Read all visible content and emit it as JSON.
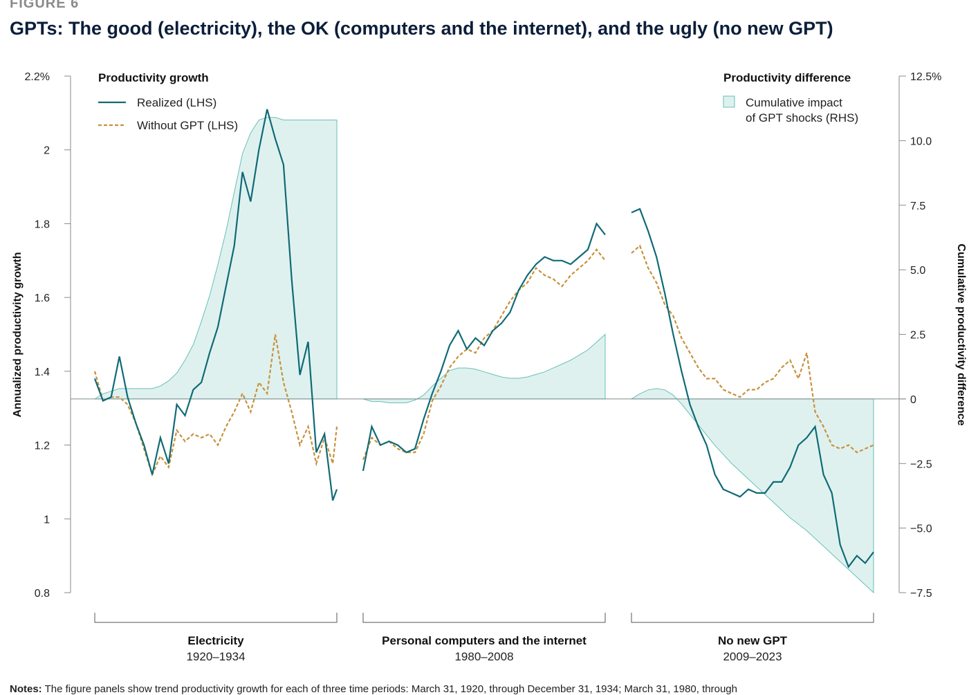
{
  "figure_label": "FIGURE 6",
  "title": "GPTs: The good (electricity), the OK (computers and the internet), and the ugly (no new GPT)",
  "notes_label": "Notes:",
  "notes_text": "The figure panels show trend productivity growth for each of three time periods: March 31, 1920, through December 31, 1934; March 31, 1980, through",
  "colors": {
    "realized": "#0f6a76",
    "without_gpt": "#c8913a",
    "impact_fill": "#dff1ef",
    "impact_stroke": "#66c0b6",
    "axis": "#8a8a8a"
  },
  "chart_data": {
    "type": "line",
    "y_left": {
      "label": "Annualized productivity growth",
      "ylim": [
        0.8,
        2.2
      ],
      "ticks": [
        "2.2%",
        "2",
        "1.8",
        "1.6",
        "1.4",
        "1.2",
        "1",
        "0.8"
      ]
    },
    "y_right": {
      "label": "Cumulative productivity difference",
      "ylim": [
        -7.5,
        12.5
      ],
      "ticks": [
        "12.5%",
        "10.0",
        "7.5",
        "5.0",
        "2.5",
        "0",
        "−2.5",
        "−5.0",
        "−7.5"
      ]
    },
    "legend_left": {
      "title": "Productivity growth",
      "realized": "Realized (LHS)",
      "without": "Without GPT (LHS)"
    },
    "legend_right": {
      "title": "Productivity difference",
      "impact_line1": "Cumulative impact",
      "impact_line2": "of GPT shocks (RHS)"
    },
    "panels": [
      {
        "name": "Electricity",
        "period": "1920–1934",
        "x": [
          1920.25,
          1920.75,
          1921.25,
          1921.75,
          1922.25,
          1922.75,
          1923.25,
          1923.75,
          1924.25,
          1924.75,
          1925.25,
          1925.75,
          1926.25,
          1926.75,
          1927.25,
          1927.75,
          1928.25,
          1928.75,
          1929.25,
          1929.75,
          1930.25,
          1930.75,
          1931.25,
          1931.75,
          1932.25,
          1932.75,
          1933.25,
          1933.75,
          1934.25,
          1934.75,
          1935.0
        ],
        "realized": [
          1.38,
          1.32,
          1.33,
          1.44,
          1.33,
          1.26,
          1.2,
          1.12,
          1.22,
          1.15,
          1.31,
          1.28,
          1.35,
          1.37,
          1.45,
          1.52,
          1.63,
          1.74,
          1.94,
          1.86,
          2.0,
          2.11,
          2.03,
          1.96,
          1.65,
          1.39,
          1.48,
          1.18,
          1.23,
          1.05,
          1.08
        ],
        "without_gpt": [
          1.4,
          1.32,
          1.33,
          1.33,
          1.31,
          1.26,
          1.19,
          1.12,
          1.17,
          1.14,
          1.24,
          1.21,
          1.23,
          1.22,
          1.23,
          1.2,
          1.25,
          1.29,
          1.34,
          1.29,
          1.37,
          1.34,
          1.5,
          1.37,
          1.29,
          1.2,
          1.25,
          1.15,
          1.22,
          1.15,
          1.25
        ],
        "impact_rhs": [
          0.0,
          0.2,
          0.3,
          0.4,
          0.4,
          0.4,
          0.4,
          0.4,
          0.5,
          0.7,
          1.0,
          1.5,
          2.1,
          3.0,
          4.0,
          5.2,
          6.5,
          8.0,
          9.5,
          10.3,
          10.8,
          10.9,
          10.9,
          10.8,
          10.8,
          10.8,
          10.8,
          10.8,
          10.8,
          10.8,
          10.8
        ]
      },
      {
        "name": "Personal computers and the internet",
        "period": "1980–2008",
        "x": [
          1980.25,
          1981.25,
          1982.25,
          1983.25,
          1984.25,
          1985.25,
          1986.25,
          1987.25,
          1988.25,
          1989.25,
          1990.25,
          1991.25,
          1992.25,
          1993.25,
          1994.25,
          1995.25,
          1996.25,
          1997.25,
          1998.25,
          1999.25,
          2000.25,
          2001.25,
          2002.25,
          2003.25,
          2004.25,
          2005.25,
          2006.25,
          2007.25,
          2008.25
        ],
        "realized": [
          1.13,
          1.25,
          1.2,
          1.21,
          1.2,
          1.18,
          1.19,
          1.27,
          1.34,
          1.4,
          1.47,
          1.51,
          1.46,
          1.49,
          1.47,
          1.51,
          1.53,
          1.56,
          1.62,
          1.66,
          1.69,
          1.71,
          1.7,
          1.7,
          1.69,
          1.71,
          1.73,
          1.8,
          1.77
        ],
        "without_gpt": [
          1.16,
          1.22,
          1.2,
          1.21,
          1.19,
          1.18,
          1.18,
          1.23,
          1.32,
          1.36,
          1.41,
          1.44,
          1.46,
          1.45,
          1.49,
          1.51,
          1.55,
          1.59,
          1.62,
          1.64,
          1.68,
          1.66,
          1.65,
          1.63,
          1.66,
          1.68,
          1.7,
          1.73,
          1.7
        ],
        "impact_rhs": [
          0.0,
          -0.1,
          -0.1,
          -0.15,
          -0.15,
          -0.15,
          -0.05,
          0.15,
          0.5,
          0.8,
          1.1,
          1.2,
          1.2,
          1.15,
          1.05,
          0.95,
          0.85,
          0.8,
          0.8,
          0.85,
          0.95,
          1.05,
          1.2,
          1.35,
          1.5,
          1.7,
          1.9,
          2.2,
          2.5
        ]
      },
      {
        "name": "No new GPT",
        "period": "2009–2023",
        "x": [
          2009.25,
          2009.75,
          2010.25,
          2010.75,
          2011.25,
          2011.75,
          2012.25,
          2012.75,
          2013.25,
          2013.75,
          2014.25,
          2014.75,
          2015.25,
          2015.75,
          2016.25,
          2016.75,
          2017.25,
          2017.75,
          2018.25,
          2018.75,
          2019.25,
          2019.75,
          2020.25,
          2020.75,
          2021.25,
          2021.75,
          2022.25,
          2022.75,
          2023.25,
          2023.75
        ],
        "realized": [
          1.83,
          1.84,
          1.78,
          1.71,
          1.61,
          1.5,
          1.4,
          1.31,
          1.25,
          1.2,
          1.12,
          1.08,
          1.07,
          1.06,
          1.08,
          1.07,
          1.07,
          1.1,
          1.1,
          1.14,
          1.2,
          1.22,
          1.25,
          1.12,
          1.07,
          0.93,
          0.87,
          0.9,
          0.88,
          0.91
        ],
        "without_gpt": [
          1.72,
          1.74,
          1.68,
          1.64,
          1.58,
          1.55,
          1.49,
          1.45,
          1.41,
          1.38,
          1.38,
          1.35,
          1.34,
          1.33,
          1.35,
          1.35,
          1.37,
          1.38,
          1.41,
          1.43,
          1.38,
          1.45,
          1.29,
          1.25,
          1.2,
          1.19,
          1.2,
          1.18,
          1.19,
          1.2
        ],
        "impact_rhs": [
          0.0,
          0.2,
          0.35,
          0.4,
          0.35,
          0.15,
          -0.2,
          -0.6,
          -1.0,
          -1.4,
          -1.8,
          -2.15,
          -2.5,
          -2.8,
          -3.1,
          -3.4,
          -3.7,
          -4.0,
          -4.3,
          -4.6,
          -4.85,
          -5.1,
          -5.4,
          -5.7,
          -6.0,
          -6.3,
          -6.6,
          -6.9,
          -7.2,
          -7.5
        ]
      }
    ]
  }
}
